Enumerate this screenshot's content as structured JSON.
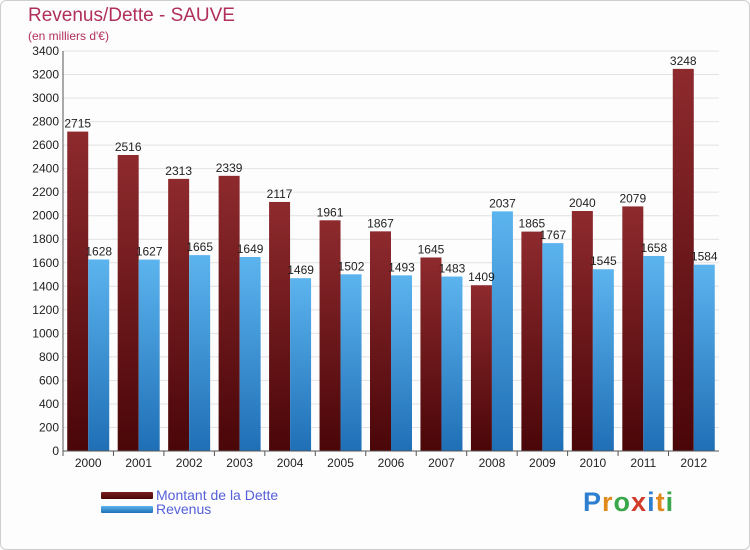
{
  "chart_data": {
    "type": "bar",
    "title": "Revenus/Dette - SAUVE",
    "subtitle": "(en milliers d'€)",
    "categories": [
      "2000",
      "2001",
      "2002",
      "2003",
      "2004",
      "2005",
      "2006",
      "2007",
      "2008",
      "2009",
      "2010",
      "2011",
      "2012"
    ],
    "series": [
      {
        "name": "Montant de la Dette",
        "color": "#7a1e22",
        "values": [
          2715,
          2516,
          2313,
          2339,
          2117,
          1961,
          1867,
          1645,
          1409,
          1865,
          2040,
          2079,
          3248
        ]
      },
      {
        "name": "Revenus",
        "color": "#3d9be0",
        "values": [
          1628,
          1627,
          1665,
          1649,
          1469,
          1502,
          1493,
          1483,
          2037,
          1767,
          1545,
          1658,
          1584
        ]
      }
    ],
    "ylim": [
      0,
      3400
    ],
    "ytick_step": 200,
    "grid": true,
    "legend": "bottom-left"
  },
  "logo": {
    "text": "Proxiti",
    "letters": [
      "P",
      "r",
      "o",
      "x",
      "i",
      "t",
      "i"
    ],
    "colors": [
      "#2f7fd0",
      "#e08a1c",
      "#3aa84a",
      "#d23a2a",
      "#2f7fd0",
      "#e08a1c",
      "#3aa84a"
    ]
  }
}
